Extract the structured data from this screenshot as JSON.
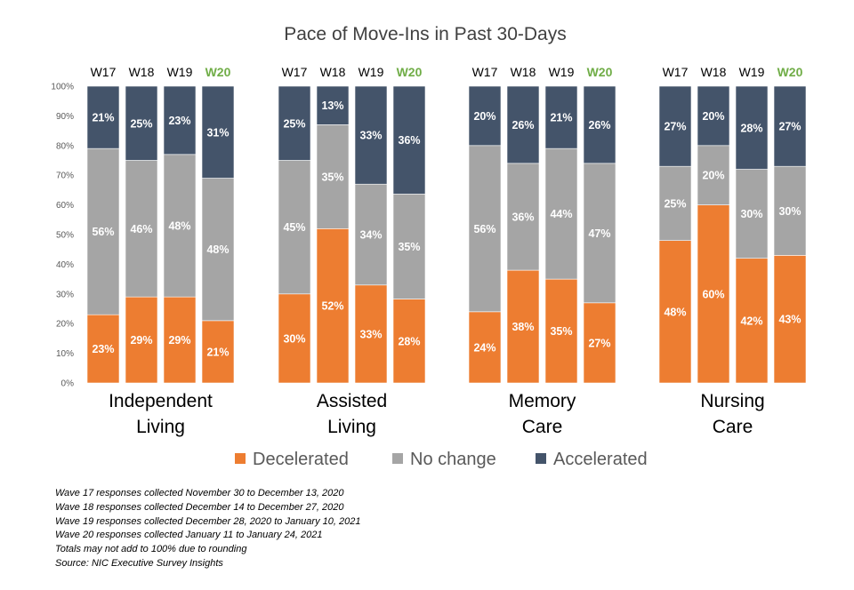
{
  "chart_data": {
    "type": "bar",
    "stacked": true,
    "title": "Pace of Move-Ins in Past 30-Days",
    "ylim": [
      0,
      100
    ],
    "y_ticks": [
      "0%",
      "10%",
      "20%",
      "30%",
      "40%",
      "50%",
      "60%",
      "70%",
      "80%",
      "90%",
      "100%"
    ],
    "grid": false,
    "legend_position": "bottom",
    "waves": [
      "W17",
      "W18",
      "W19",
      "W20"
    ],
    "highlight_wave": "W20",
    "groups": [
      {
        "name": "Independent Living",
        "name_lines": [
          "Independent",
          "Living"
        ]
      },
      {
        "name": "Assisted Living",
        "name_lines": [
          "Assisted",
          "Living"
        ]
      },
      {
        "name": "Memory Care",
        "name_lines": [
          "Memory",
          "Care"
        ]
      },
      {
        "name": "Nursing Care",
        "name_lines": [
          "Nursing",
          "Care"
        ]
      }
    ],
    "series": [
      {
        "name": "Decelerated",
        "color": "#ED7D31",
        "values": [
          [
            23,
            29,
            29,
            21
          ],
          [
            30,
            52,
            33,
            28
          ],
          [
            24,
            38,
            35,
            27
          ],
          [
            48,
            60,
            42,
            43
          ]
        ]
      },
      {
        "name": "No change",
        "color": "#A5A5A5",
        "values": [
          [
            56,
            46,
            48,
            48
          ],
          [
            45,
            35,
            34,
            35
          ],
          [
            56,
            36,
            44,
            47
          ],
          [
            25,
            20,
            30,
            30
          ]
        ]
      },
      {
        "name": "Accelerated",
        "color": "#44546A",
        "values": [
          [
            21,
            25,
            23,
            31
          ],
          [
            25,
            13,
            33,
            36
          ],
          [
            20,
            26,
            21,
            26
          ],
          [
            27,
            20,
            28,
            27
          ]
        ]
      }
    ],
    "colors": {
      "highlight": "#70AD47",
      "label_text": "#FFFFFF"
    }
  },
  "footnotes": [
    "Wave 17 responses collected  November 30 to December 13, 2020",
    "Wave 18 responses collected  December 14 to December  27, 2020",
    "Wave 19 responses collected  December 28, 2020 to January 10, 2021",
    "Wave 20 responses collected  January 11 to January 24, 2021",
    "Totals may not add to 100% due to rounding",
    "Source: NIC Executive Survey Insights"
  ]
}
